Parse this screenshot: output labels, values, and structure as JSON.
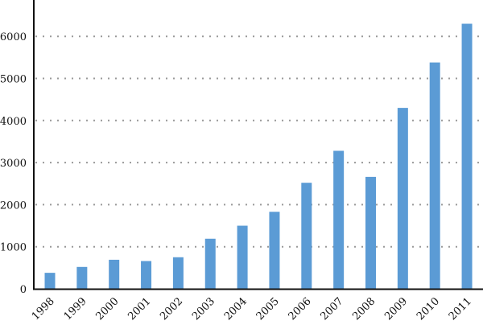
{
  "chart_data": {
    "type": "bar",
    "categories": [
      "1998",
      "1999",
      "2000",
      "2001",
      "2002",
      "2003",
      "2004",
      "2005",
      "2006",
      "2007",
      "2008",
      "2009",
      "2010",
      "2011"
    ],
    "values": [
      380,
      520,
      690,
      660,
      750,
      1190,
      1500,
      1830,
      2520,
      3280,
      2660,
      4300,
      5380,
      6300
    ],
    "yticks": [
      "0",
      "1000",
      "2000",
      "3000",
      "4000",
      "5000",
      "6000"
    ],
    "ylim": [
      0,
      6800
    ],
    "grid": "horizontal dotted",
    "bar_color": "#5b9bd5",
    "title": "",
    "xlabel": "",
    "ylabel": ""
  }
}
